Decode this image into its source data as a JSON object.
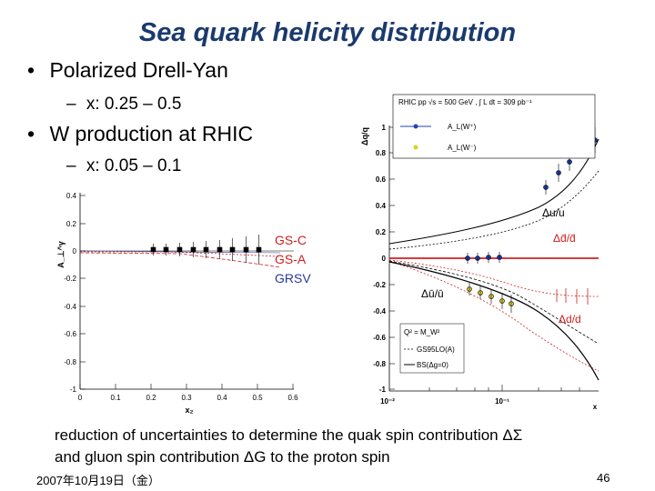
{
  "slide": {
    "title": "Sea quark helicity distribution",
    "bullets": [
      {
        "text": "Polarized Drell-Yan",
        "sub": "x: 0.25 – 0.5"
      },
      {
        "text": "W production at RHIC",
        "sub": "x: 0.05 – 0.1"
      }
    ],
    "caption_line1": "reduction of uncertainties to determine the quak spin contribution ΔΣ",
    "caption_line2": "and gluon spin contribution ΔG to the proton spin",
    "date": "2007年10月19日（金）",
    "page": "46",
    "bullet_symbol": "•",
    "sub_symbol": "–"
  },
  "left_plot": {
    "ylabel": "A_⊥^γ",
    "xlabel": "x₂",
    "x_ticks": [
      "0",
      "0.1",
      "0.2",
      "0.3",
      "0.4",
      "0.5",
      "0.6"
    ],
    "y_ticks": [
      "0.4",
      "0.2",
      "0",
      "-0.2",
      "-0.4",
      "-0.6",
      "-0.8",
      "-1"
    ],
    "legend": [
      {
        "label": "GS-C",
        "color": "#d02020"
      },
      {
        "label": "GS-A",
        "color": "#d02020"
      },
      {
        "label": "GRSV",
        "color": "#2a3a9a"
      }
    ]
  },
  "right_plot": {
    "ylabel": "Δq/q",
    "xlabel": "x",
    "y_ticks": [
      "1",
      "0.8",
      "0.6",
      "0.4",
      "0.2",
      "0",
      "-0.2",
      "-0.4",
      "-0.6",
      "-0.8",
      "-1"
    ],
    "x_ticks": [
      "10⁻²",
      "10⁻¹"
    ],
    "header": "RHIC pp √s = 500 GeV , ∫ L dt = 309 pb⁻¹",
    "legend": [
      {
        "label": "A_L(W⁺)",
        "color": "#2040c0"
      },
      {
        "label": "A_L(W⁻)",
        "color": "#e0d020"
      }
    ],
    "curve_labels": {
      "du_u": "Δu/u",
      "ddbar": "Δd̄/d̄",
      "dubar": "Δū/ū",
      "dd": "Δd/d"
    },
    "inset": {
      "q2": "Q² = M_W²",
      "items": [
        {
          "label": "GS95LO(A)",
          "style": "dotted"
        },
        {
          "label": "BS(Δg=0)",
          "style": "solid"
        }
      ]
    }
  }
}
